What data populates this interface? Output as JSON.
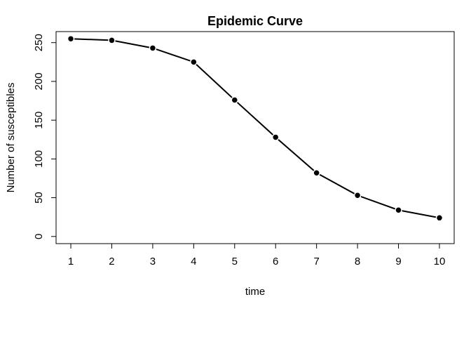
{
  "chart_data": {
    "type": "line",
    "title": "Epidemic Curve",
    "xlabel": "time",
    "ylabel": "Number of susceptibles",
    "x": [
      1,
      2,
      3,
      4,
      5,
      6,
      7,
      8,
      9,
      10
    ],
    "series": [
      {
        "values": [
          255,
          253,
          243,
          225,
          176,
          128,
          82,
          53,
          34,
          24
        ]
      }
    ],
    "xlim": [
      0.64,
      10.36
    ],
    "ylim": [
      -9.24,
      264.24
    ],
    "xticks": [
      "1",
      "2",
      "3",
      "4",
      "5",
      "6",
      "7",
      "8",
      "9",
      "10"
    ],
    "yticks": [
      "0",
      "50",
      "100",
      "150",
      "200",
      "250"
    ],
    "grid": false,
    "legend": "none",
    "marker": "filled-circle",
    "line_color": "#000000"
  }
}
